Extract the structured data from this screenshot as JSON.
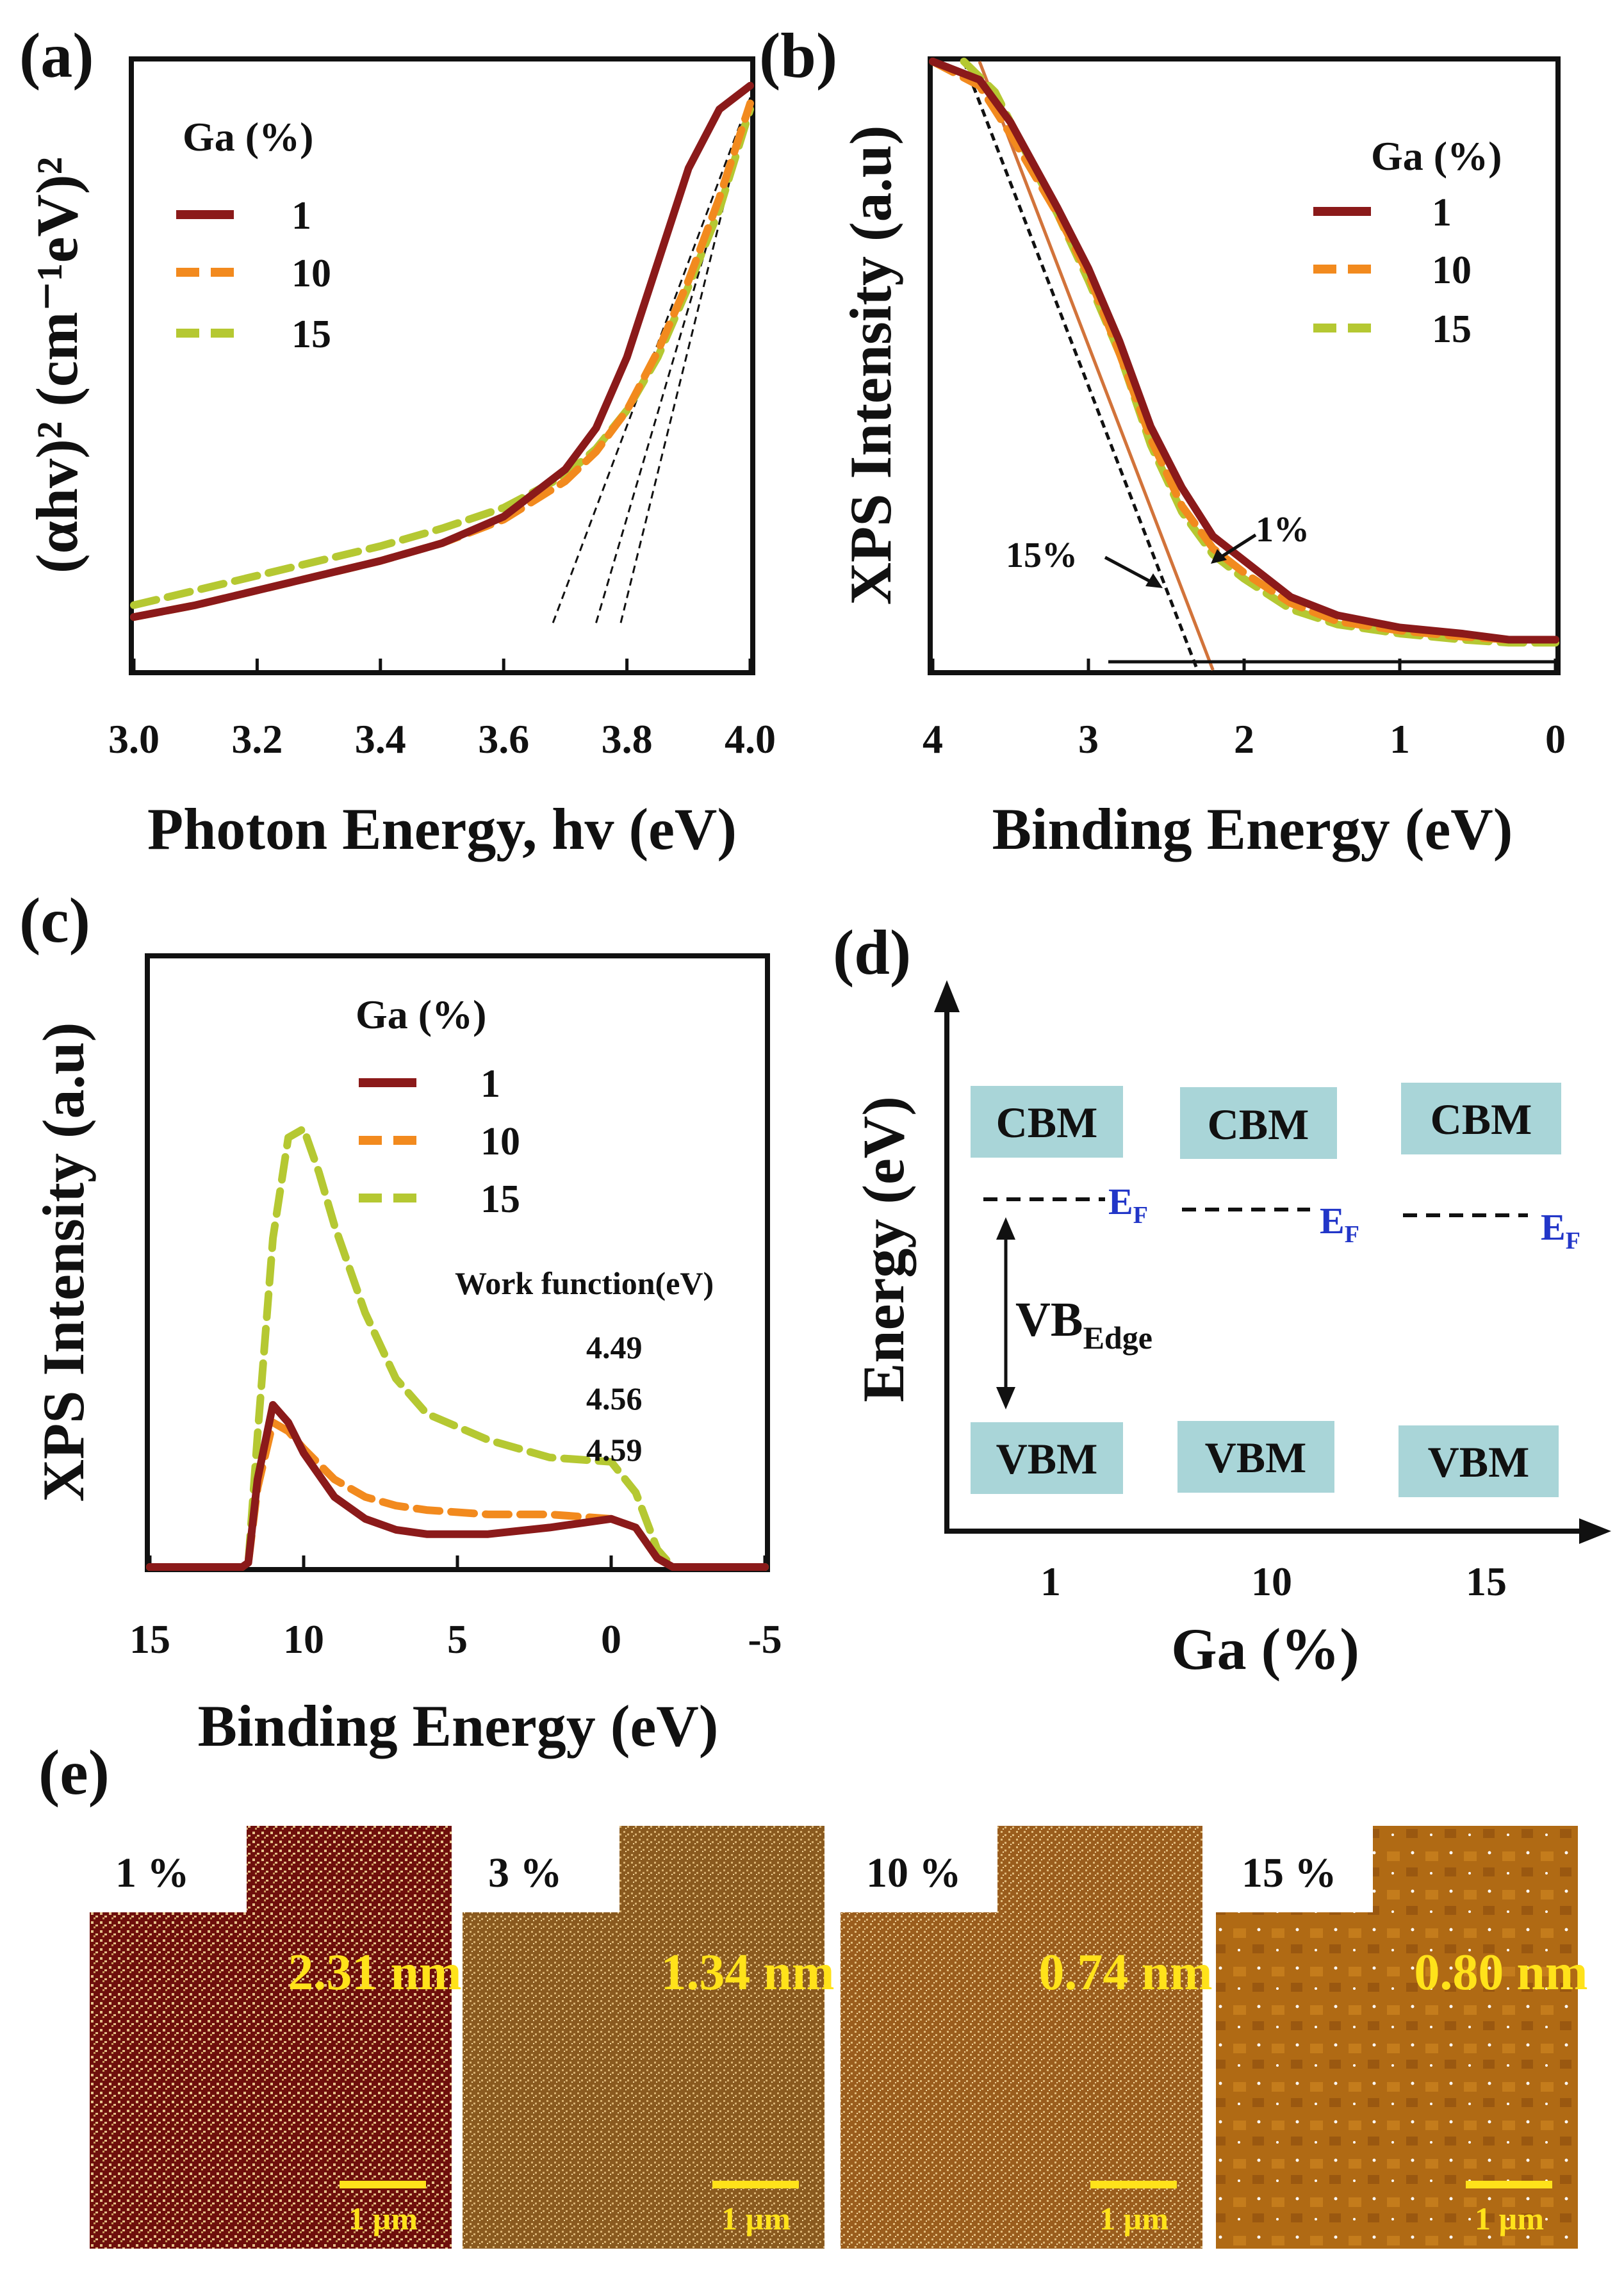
{
  "panels": {
    "a": "(a)",
    "b": "(b)",
    "c": "(c)",
    "d": "(d)",
    "e": "(e)"
  },
  "colors": {
    "ga1": "#8b1a1a",
    "ga10": "#f28a1e",
    "ga15": "#b5c832",
    "box": "#a9d5d8",
    "ef": "#2236c8",
    "afm_scale": "#ffe21a"
  },
  "legend": {
    "title": "Ga (%)",
    "entries": [
      "1",
      "10",
      "15"
    ]
  },
  "chart_data": [
    {
      "id": "a",
      "type": "line",
      "xlabel": "Photon Energy, hv (eV)",
      "ylabel": "(αhv)² (cm⁻¹eV)²",
      "xlim": [
        3.0,
        4.0
      ],
      "ylim": [
        0,
        1
      ],
      "xticks": [
        "3.0",
        "3.2",
        "3.4",
        "3.6",
        "3.8",
        "4.0"
      ],
      "legend_title": "Ga (%)",
      "series": [
        {
          "name": "1",
          "x": [
            3.0,
            3.1,
            3.2,
            3.3,
            3.4,
            3.5,
            3.6,
            3.7,
            3.75,
            3.8,
            3.85,
            3.9,
            3.95,
            4.0
          ],
          "y": [
            0.09,
            0.11,
            0.135,
            0.16,
            0.185,
            0.215,
            0.26,
            0.34,
            0.41,
            0.53,
            0.69,
            0.85,
            0.95,
            0.99
          ]
        },
        {
          "name": "10",
          "x": [
            3.0,
            3.1,
            3.2,
            3.3,
            3.4,
            3.5,
            3.6,
            3.7,
            3.75,
            3.8,
            3.85,
            3.9,
            3.95,
            4.0
          ],
          "y": [
            0.09,
            0.11,
            0.135,
            0.16,
            0.185,
            0.215,
            0.255,
            0.32,
            0.37,
            0.44,
            0.54,
            0.66,
            0.8,
            0.96
          ]
        },
        {
          "name": "15",
          "x": [
            3.0,
            3.1,
            3.2,
            3.3,
            3.4,
            3.5,
            3.6,
            3.7,
            3.75,
            3.8,
            3.85,
            3.9,
            3.95,
            4.0
          ],
          "y": [
            0.11,
            0.135,
            0.16,
            0.185,
            0.21,
            0.24,
            0.275,
            0.33,
            0.375,
            0.44,
            0.53,
            0.65,
            0.78,
            0.95
          ]
        }
      ],
      "fit_lines": [
        {
          "x": [
            3.68,
            4.0
          ],
          "y": [
            0.08,
            0.97
          ]
        },
        {
          "x": [
            3.75,
            4.0
          ],
          "y": [
            0.08,
            0.97
          ]
        },
        {
          "x": [
            3.79,
            4.0
          ],
          "y": [
            0.08,
            0.97
          ]
        }
      ]
    },
    {
      "id": "b",
      "type": "line",
      "xlabel": "Binding Energy (eV)",
      "ylabel": "XPS Intensity (a.u)",
      "xlim": [
        4,
        0
      ],
      "ylim": [
        0,
        1
      ],
      "xticks": [
        "4",
        "3",
        "2",
        "1",
        "0"
      ],
      "legend_title": "Ga (%)",
      "series": [
        {
          "name": "1",
          "x": [
            4.0,
            3.7,
            3.5,
            3.2,
            3.0,
            2.8,
            2.6,
            2.4,
            2.2,
            2.0,
            1.7,
            1.4,
            1.0,
            0.6,
            0.3,
            0.0
          ],
          "y": [
            1.0,
            0.97,
            0.9,
            0.76,
            0.66,
            0.54,
            0.4,
            0.3,
            0.22,
            0.18,
            0.12,
            0.09,
            0.07,
            0.06,
            0.05,
            0.05
          ]
        },
        {
          "name": "10",
          "x": [
            4.0,
            3.7,
            3.5,
            3.2,
            3.0,
            2.8,
            2.6,
            2.4,
            2.2,
            2.0,
            1.7,
            1.4,
            1.0,
            0.6,
            0.3,
            0.0
          ],
          "y": [
            1.0,
            0.96,
            0.88,
            0.75,
            0.65,
            0.52,
            0.38,
            0.27,
            0.2,
            0.16,
            0.11,
            0.08,
            0.065,
            0.055,
            0.05,
            0.05
          ]
        },
        {
          "name": "15",
          "x": [
            3.8,
            3.6,
            3.4,
            3.2,
            3.0,
            2.8,
            2.6,
            2.4,
            2.2,
            2.0,
            1.7,
            1.4,
            1.0,
            0.6,
            0.3,
            0.0
          ],
          "y": [
            1.0,
            0.95,
            0.85,
            0.75,
            0.64,
            0.52,
            0.37,
            0.26,
            0.19,
            0.15,
            0.1,
            0.075,
            0.06,
            0.05,
            0.045,
            0.045
          ]
        }
      ],
      "fit_lines": [
        {
          "x": [
            3.8,
            2.3
          ],
          "y": [
            1.0,
            0.0
          ]
        },
        {
          "x": [
            3.7,
            2.2
          ],
          "y": [
            1.0,
            0.0
          ]
        }
      ],
      "annotations": [
        "15%",
        "1%"
      ]
    },
    {
      "id": "c",
      "type": "line",
      "xlabel": "Binding Energy (eV)",
      "ylabel": "XPS Intensity (a.u)",
      "xlim": [
        15,
        -5
      ],
      "ylim": [
        0,
        1
      ],
      "xticks": [
        "15",
        "10",
        "5",
        "0",
        "-5"
      ],
      "legend_title": "Ga (%)",
      "inset_title": "Work function(eV)",
      "work_functions": [
        "4.49",
        "4.56",
        "4.59"
      ],
      "series": [
        {
          "name": "1",
          "x": [
            15,
            12,
            11.8,
            11.5,
            11,
            10.5,
            10,
            9,
            8,
            7,
            6,
            4,
            2,
            0,
            -0.8,
            -1.5,
            -2,
            -5
          ],
          "y": [
            0,
            0,
            0.01,
            0.2,
            0.37,
            0.33,
            0.26,
            0.16,
            0.11,
            0.085,
            0.075,
            0.075,
            0.09,
            0.11,
            0.09,
            0.02,
            0,
            0
          ]
        },
        {
          "name": "10",
          "x": [
            15,
            12,
            11.8,
            11.5,
            11,
            10.5,
            10,
            9,
            8,
            7,
            6,
            4,
            2,
            0,
            -0.8,
            -1.5,
            -2,
            -5
          ],
          "y": [
            0,
            0,
            0.01,
            0.18,
            0.33,
            0.31,
            0.27,
            0.2,
            0.16,
            0.14,
            0.13,
            0.12,
            0.12,
            0.11,
            0.09,
            0.02,
            0,
            0
          ]
        },
        {
          "name": "15",
          "x": [
            15,
            12,
            11.8,
            11.5,
            11,
            10.5,
            10,
            9.5,
            9,
            8,
            7,
            6,
            4,
            2,
            0,
            -0.8,
            -1.5,
            -2,
            -5
          ],
          "y": [
            0,
            0,
            0.01,
            0.3,
            0.75,
            0.98,
            1.0,
            0.9,
            0.78,
            0.58,
            0.43,
            0.35,
            0.29,
            0.25,
            0.24,
            0.17,
            0.04,
            0,
            0
          ]
        }
      ]
    },
    {
      "id": "d",
      "type": "diagram",
      "xlabel": "Ga (%)",
      "ylabel": "Energy (eV)",
      "categories": [
        "1",
        "10",
        "15"
      ],
      "cbm_label": "CBM",
      "vbm_label": "VBM",
      "ef_main": "E",
      "ef_sub": "F",
      "vb_main": "VB",
      "vb_sub": "Edge"
    }
  ],
  "afm": [
    {
      "ga": "1 %",
      "roughness": "2.31 nm",
      "scale": "1 µm",
      "base": "#6e0f0c",
      "grain": "#e6c28a",
      "density": 0.55
    },
    {
      "ga": "3 %",
      "roughness": "1.34 nm",
      "scale": "1 µm",
      "base": "#8a5a1f",
      "grain": "#d9b272",
      "density": 0.45
    },
    {
      "ga": "10 %",
      "roughness": "0.74 nm",
      "scale": "1 µm",
      "base": "#9a5d1d",
      "grain": "#e0bb7c",
      "density": 0.4
    },
    {
      "ga": "15 %",
      "roughness": "0.80 nm",
      "scale": "1 µm",
      "base": "#b06a14",
      "grain": "#ffffff",
      "density": 0.05
    }
  ]
}
